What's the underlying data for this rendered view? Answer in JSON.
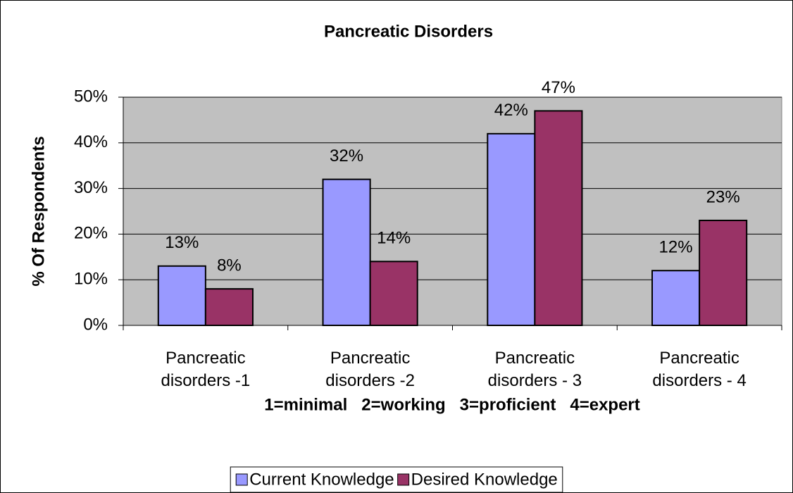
{
  "chart_data": {
    "type": "bar",
    "title": "Pancreatic Disorders",
    "y_label": "% Of Respondents",
    "x_label": "1=minimal   2=working   3=proficient   4=expert",
    "categories": [
      "Pancreatic disorders -1",
      "Pancreatic disorders -2",
      "Pancreatic disorders - 3",
      "Pancreatic disorders - 4"
    ],
    "series": [
      {
        "name": "Current Knowledge",
        "color": "#9999ff",
        "values": [
          13,
          32,
          42,
          12
        ],
        "value_labels": [
          "13%",
          "32%",
          "42%",
          "12%"
        ]
      },
      {
        "name": "Desired Knowledge",
        "color": "#993366",
        "values": [
          8,
          14,
          47,
          23
        ],
        "value_labels": [
          "8%",
          "14%",
          "47%",
          "23%"
        ]
      }
    ],
    "ylim": [
      0,
      50
    ],
    "yticks": [
      {
        "value": 0,
        "label": "0%"
      },
      {
        "value": 10,
        "label": "10%"
      },
      {
        "value": 20,
        "label": "20%"
      },
      {
        "value": 30,
        "label": "30%"
      },
      {
        "value": 40,
        "label": "40%"
      },
      {
        "value": 50,
        "label": "50%"
      }
    ],
    "grid": true,
    "legend": "bottom"
  }
}
